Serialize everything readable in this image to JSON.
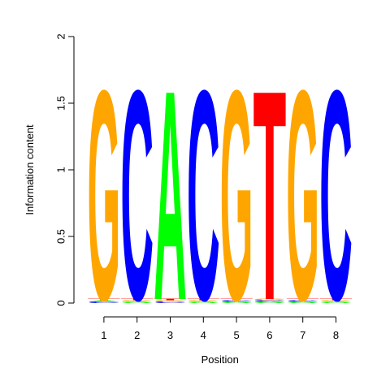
{
  "chart_data": {
    "type": "sequence-logo",
    "xlabel": "Position",
    "ylabel": "Information content",
    "ylim": [
      0,
      2
    ],
    "yticks": [
      "0",
      "0.5",
      "1",
      "1.5",
      "2"
    ],
    "positions": [
      "1",
      "2",
      "3",
      "4",
      "5",
      "6",
      "7",
      "8"
    ],
    "colors": {
      "A": "#00ff00",
      "C": "#0000ff",
      "G": "#ffa500",
      "T": "#ff0000"
    },
    "stacks": [
      [
        {
          "letter": "C",
          "value": 0.01
        },
        {
          "letter": "A",
          "value": 0.01
        },
        {
          "letter": "T",
          "value": 0.01
        },
        {
          "letter": "G",
          "value": 1.62
        }
      ],
      [
        {
          "letter": "A",
          "value": 0.01
        },
        {
          "letter": "G",
          "value": 0.01
        },
        {
          "letter": "T",
          "value": 0.01
        },
        {
          "letter": "C",
          "value": 1.62
        }
      ],
      [
        {
          "letter": "C",
          "value": 0.01
        },
        {
          "letter": "G",
          "value": 0.01
        },
        {
          "letter": "T",
          "value": 0.01
        },
        {
          "letter": "A",
          "value": 1.62
        }
      ],
      [
        {
          "letter": "A",
          "value": 0.01
        },
        {
          "letter": "G",
          "value": 0.01
        },
        {
          "letter": "T",
          "value": 0.01
        },
        {
          "letter": "C",
          "value": 1.62
        }
      ],
      [
        {
          "letter": "A",
          "value": 0.01
        },
        {
          "letter": "C",
          "value": 0.01
        },
        {
          "letter": "T",
          "value": 0.01
        },
        {
          "letter": "G",
          "value": 1.62
        }
      ],
      [
        {
          "letter": "A",
          "value": 0.01
        },
        {
          "letter": "C",
          "value": 0.01
        },
        {
          "letter": "G",
          "value": 0.01
        },
        {
          "letter": "T",
          "value": 1.62
        }
      ],
      [
        {
          "letter": "A",
          "value": 0.01
        },
        {
          "letter": "C",
          "value": 0.01
        },
        {
          "letter": "T",
          "value": 0.01
        },
        {
          "letter": "G",
          "value": 1.62
        }
      ],
      [
        {
          "letter": "A",
          "value": 0.01
        },
        {
          "letter": "G",
          "value": 0.01
        },
        {
          "letter": "T",
          "value": 0.01
        },
        {
          "letter": "C",
          "value": 1.62
        }
      ]
    ]
  }
}
